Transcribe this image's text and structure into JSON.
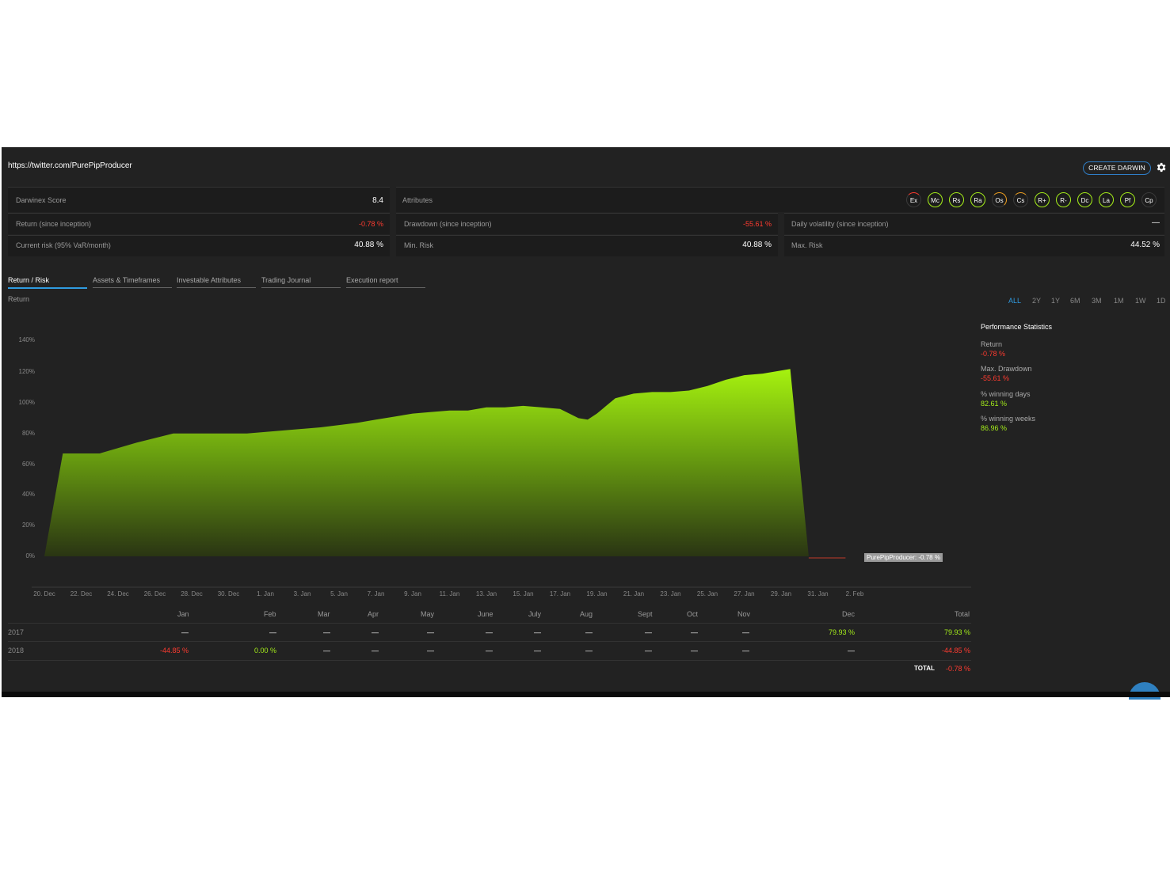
{
  "header": {
    "url": "https://twitter.com/PurePipProducer",
    "create_button": "CREATE DARWIN"
  },
  "stats": {
    "darwinex_score_label": "Darwinex Score",
    "darwinex_score_value": "8.4",
    "attributes_label": "Attributes",
    "return_label": "Return (since inception)",
    "return_value": "-0.78 %",
    "drawdown_label": "Drawdown (since inception)",
    "drawdown_value": "-55.61 %",
    "volatility_label": "Daily volatility (since inception)",
    "volatility_value": "—",
    "current_risk_label": "Current risk (95% VaR/month)",
    "current_risk_value": "40.88 %",
    "min_risk_label": "Min. Risk",
    "min_risk_value": "40.88 %",
    "max_risk_label": "Max. Risk",
    "max_risk_value": "44.52 %"
  },
  "attributes": [
    {
      "code": "Ex",
      "color": "#ff3b30",
      "level": 0.1
    },
    {
      "code": "Mc",
      "color": "#a4ec1a",
      "level": 1
    },
    {
      "code": "Rs",
      "color": "#a4ec1a",
      "level": 1
    },
    {
      "code": "Ra",
      "color": "#a4ec1a",
      "level": 1
    },
    {
      "code": "Os",
      "color": "#f0a020",
      "level": 0.5
    },
    {
      "code": "Cs",
      "color": "#f0a020",
      "level": 0.3
    },
    {
      "code": "R+",
      "color": "#a4ec1a",
      "level": 1
    },
    {
      "code": "R-",
      "color": "#a4ec1a",
      "level": 1
    },
    {
      "code": "Dc",
      "color": "#a4ec1a",
      "level": 1
    },
    {
      "code": "La",
      "color": "#a4ec1a",
      "level": 1
    },
    {
      "code": "Pf",
      "color": "#a4ec1a",
      "level": 1
    },
    {
      "code": "Cp",
      "color": "#555555",
      "level": 0
    }
  ],
  "tabs": [
    "Return / Risk",
    "Assets & Timeframes",
    "Investable Attributes",
    "Trading Journal",
    "Execution report"
  ],
  "chart_title": "Return",
  "periods": [
    "ALL",
    "2Y",
    "1Y",
    "6M",
    "3M",
    "1M",
    "1W",
    "1D"
  ],
  "perf": {
    "title": "Performance Statistics",
    "return_label": "Return",
    "return_value": "-0.78 %",
    "maxdd_label": "Max. Drawdown",
    "maxdd_value": "-55.61 %",
    "windays_label": "% winning days",
    "windays_value": "82.61 %",
    "winweeks_label": "% winning weeks",
    "winweeks_value": "86.96 %"
  },
  "chart_data": {
    "type": "area",
    "ylim": [
      0,
      140
    ],
    "yticks": [
      "0%",
      "20%",
      "40%",
      "60%",
      "80%",
      "100%",
      "120%",
      "140%"
    ],
    "x_labels": [
      "20. Dec",
      "22. Dec",
      "24. Dec",
      "26. Dec",
      "28. Dec",
      "30. Dec",
      "1. Jan",
      "3. Jan",
      "5. Jan",
      "7. Jan",
      "9. Jan",
      "11. Jan",
      "13. Jan",
      "15. Jan",
      "17. Jan",
      "19. Jan",
      "21. Jan",
      "23. Jan",
      "25. Jan",
      "27. Jan",
      "29. Jan",
      "31. Jan",
      "2. Feb"
    ],
    "series": [
      {
        "x": [
          0,
          1,
          3,
          5,
          7,
          9,
          11,
          13,
          15,
          17,
          18,
          19,
          20,
          21,
          22,
          23,
          24,
          25,
          26,
          27,
          28,
          29,
          29.5,
          30,
          31,
          32,
          33,
          34,
          35,
          36,
          37,
          38,
          39,
          40.5,
          41.5,
          42.5,
          43.5
        ],
        "values": [
          0,
          67,
          67,
          74,
          80,
          80,
          80,
          82,
          84,
          87,
          89,
          91,
          93,
          94,
          95,
          95,
          97,
          97,
          98,
          97,
          96,
          90,
          89,
          93,
          103,
          106,
          107,
          107,
          108,
          111,
          115,
          118,
          119,
          122,
          0,
          0,
          0
        ]
      }
    ],
    "end_label": "PurePipProducer: -0.78 %"
  },
  "monthly": {
    "headers": [
      "Jan",
      "Feb",
      "Mar",
      "Apr",
      "May",
      "June",
      "July",
      "Aug",
      "Sept",
      "Oct",
      "Nov",
      "Dec",
      "Total"
    ],
    "rows": [
      {
        "year": "2017",
        "values": [
          "—",
          "—",
          "—",
          "—",
          "—",
          "—",
          "—",
          "—",
          "—",
          "—",
          "—",
          "79.93 %",
          "79.93 %"
        ],
        "colors": [
          "w",
          "w",
          "w",
          "w",
          "w",
          "w",
          "w",
          "w",
          "w",
          "w",
          "w",
          "g",
          "g"
        ]
      },
      {
        "year": "2018",
        "values": [
          "-44.85 %",
          "0.00 %",
          "—",
          "—",
          "—",
          "—",
          "—",
          "—",
          "—",
          "—",
          "—",
          "—",
          "-44.85 %"
        ],
        "colors": [
          "r",
          "g",
          "w",
          "w",
          "w",
          "w",
          "w",
          "w",
          "w",
          "w",
          "w",
          "w",
          "r"
        ]
      }
    ],
    "total_label": "TOTAL",
    "total_value": "-0.78 %"
  }
}
